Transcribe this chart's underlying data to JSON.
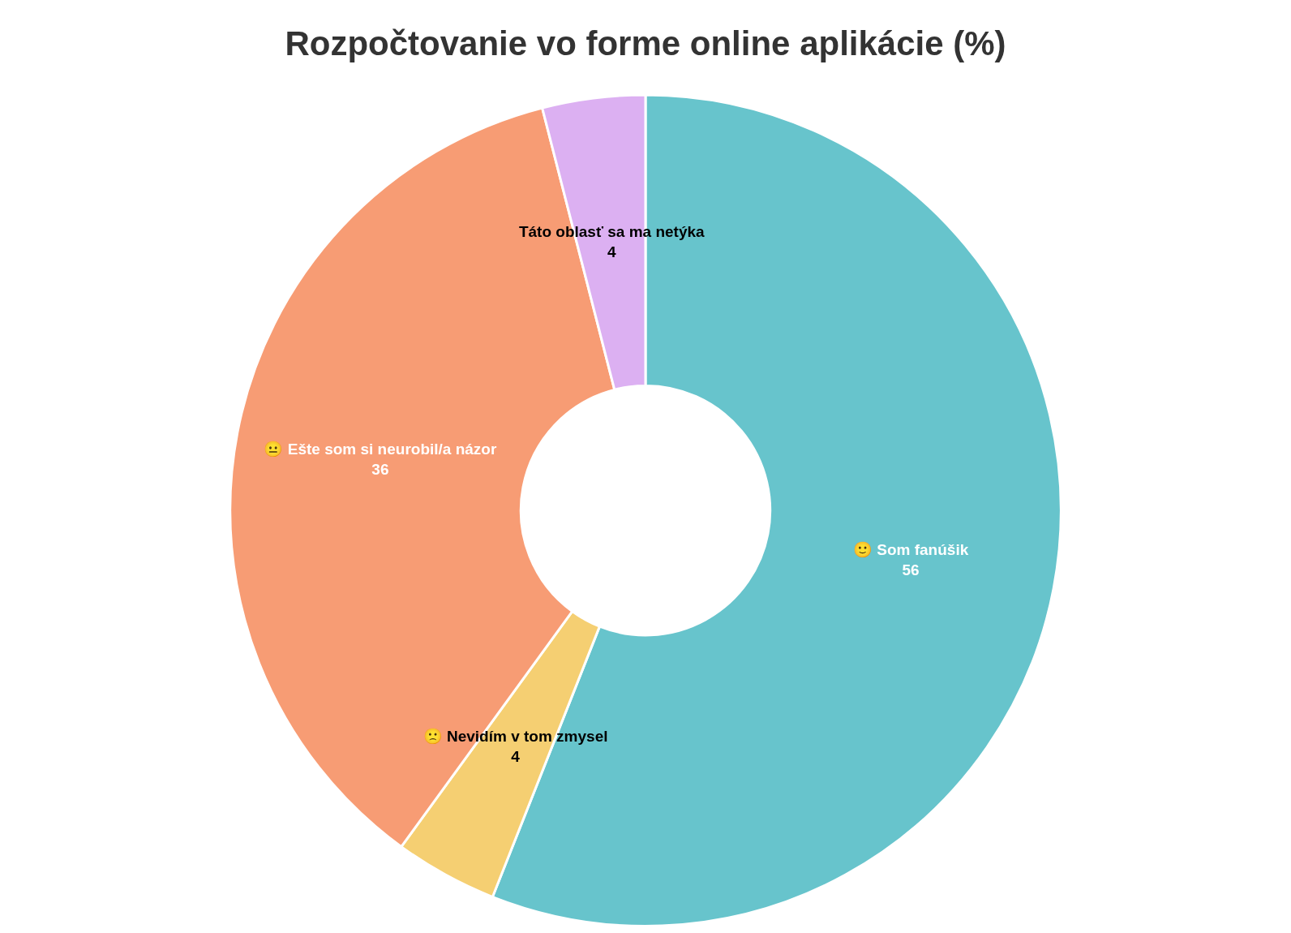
{
  "chart_data": {
    "type": "donut",
    "title": "Rozpočtovanie vo forme online aplikácie (%)",
    "categories": [
      "🙂 Som fanúšik",
      "🙁 Nevidím v tom zmysel",
      "😐 Ešte som si neurobil/a názor",
      "Táto oblasť sa ma netýka"
    ],
    "values": [
      56,
      4,
      36,
      4
    ],
    "colors": [
      "#67c4cc",
      "#f5cf72",
      "#f79c74",
      "#dcb0f2"
    ],
    "data_labels": true
  }
}
